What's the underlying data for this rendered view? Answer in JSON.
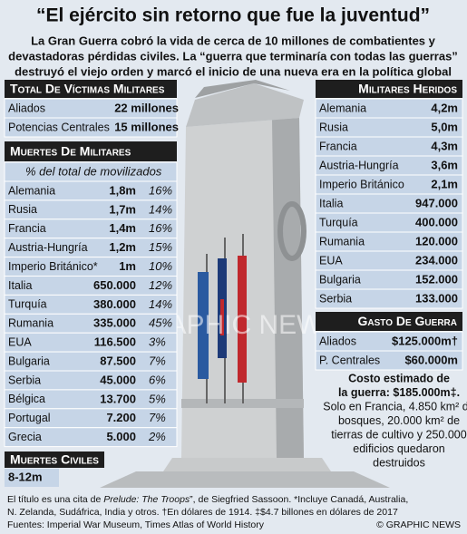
{
  "header": {
    "title": "“El ejército sin retorno que fue la juventud”",
    "subtitle": [
      "La Gran Guerra cobró la vida de cerca de 10 millones de combatientes y",
      "devastadoras pérdidas civiles. La “guerra que terminaría con todas las guerras”",
      "destruyó el viejo orden y marcó el inicio de una nueva era en la política global"
    ]
  },
  "total_victims": {
    "title": "Total De Víctimas Militares",
    "rows": [
      [
        "Aliados",
        "22 millones"
      ],
      [
        "Potencias Centrales",
        "15 millones"
      ]
    ]
  },
  "military_deaths": {
    "title": "Muertes De Militares",
    "note": "% del total de movilizados",
    "rows": [
      [
        "Alemania",
        "1,8m",
        "16%"
      ],
      [
        "Rusia",
        "1,7m",
        "14%"
      ],
      [
        "Francia",
        "1,4m",
        "16%"
      ],
      [
        "Austria-Hungría",
        "1,2m",
        "15%"
      ],
      [
        "Imperio Británico*",
        "1m",
        "10%"
      ],
      [
        "Italia",
        "650.000",
        "12%"
      ],
      [
        "Turquía",
        "380.000",
        "14%"
      ],
      [
        "Rumania",
        "335.000",
        "45%"
      ],
      [
        "EUA",
        "116.500",
        "3%"
      ],
      [
        "Bulgaria",
        "87.500",
        "7%"
      ],
      [
        "Serbia",
        "45.000",
        "6%"
      ],
      [
        "Bélgica",
        "13.700",
        "5%"
      ],
      [
        "Portugal",
        "7.200",
        "7%"
      ],
      [
        "Grecia",
        "5.000",
        "2%"
      ]
    ]
  },
  "civil_deaths": {
    "title": "Muertes Civiles",
    "value": "8-12m"
  },
  "wounded": {
    "title": "Militares Heridos",
    "rows": [
      [
        "Alemania",
        "4,2m"
      ],
      [
        "Rusia",
        "5,0m"
      ],
      [
        "Francia",
        "4,3m"
      ],
      [
        "Austria-Hungría",
        "3,6m"
      ],
      [
        "Imperio Británico",
        "2,1m"
      ],
      [
        "Italia",
        "947.000"
      ],
      [
        "Turquía",
        "400.000"
      ],
      [
        "Rumania",
        "120.000"
      ],
      [
        "EUA",
        "234.000"
      ],
      [
        "Bulgaria",
        "152.000"
      ],
      [
        "Serbia",
        "133.000"
      ]
    ]
  },
  "war_cost": {
    "title": "Gasto De Guerra",
    "rows": [
      [
        "Aliados",
        "$125.000m†"
      ],
      [
        "P. Centrales",
        "$60.000m"
      ]
    ],
    "text": [
      "Costo estimado de",
      "la guerra: $185.000m‡.",
      "Solo en Francia, 4.850 km² de",
      "bosques, 20.000 km² de",
      "tierras de cultivo y 250.000",
      "edificios quedaron",
      "destruidos"
    ]
  },
  "watermark": "GRAPHIC NEWS",
  "footer": {
    "line1": [
      "El título es una cita de ",
      "Prelude: The Troops",
      "”, de Siegfried Sassoon.  *Incluye Canadá, Australia,"
    ],
    "line2": "N. Zelanda, Sudáfrica, India y otros. †En dólares de 1914. ‡$4.7 billones en dólares de 2017",
    "line3": "Fuentes: Imperial War Museum, Times Atlas of World History",
    "credit": "© GRAPHIC NEWS"
  }
}
